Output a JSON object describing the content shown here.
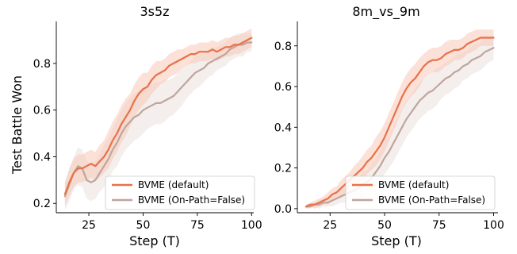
{
  "figure": {
    "ylabel": "Test Battle Won",
    "colors": {
      "default": "#e8714a",
      "onpath_false": "#bfa59d",
      "default_band": "#f7c8b6",
      "onpath_band": "#ebe2de"
    }
  },
  "chart_data": [
    {
      "type": "line",
      "title": "3s5z",
      "xlabel": "Step (T)",
      "ylabel": "Test Battle Won",
      "xlim": [
        10,
        101
      ],
      "ylim": [
        0.16,
        0.98
      ],
      "xticks": [
        25,
        50,
        75,
        100
      ],
      "yticks": [
        0.2,
        0.4,
        0.6,
        0.8
      ],
      "ytick_labels": [
        "0.2",
        "0.4",
        "0.6",
        "0.8"
      ],
      "grid": false,
      "legend_position": "lower-right",
      "series": [
        {
          "name": "BVME (default)",
          "color": "#e8714a",
          "x": [
            14,
            16,
            18,
            20,
            22,
            24,
            26,
            28,
            30,
            32,
            34,
            36,
            38,
            40,
            42,
            44,
            46,
            48,
            50,
            52,
            54,
            56,
            58,
            60,
            62,
            64,
            66,
            68,
            70,
            72,
            74,
            76,
            78,
            80,
            82,
            84,
            86,
            88,
            90,
            92,
            94,
            96,
            98,
            100
          ],
          "y": [
            0.24,
            0.29,
            0.33,
            0.35,
            0.35,
            0.36,
            0.37,
            0.36,
            0.38,
            0.4,
            0.43,
            0.47,
            0.5,
            0.54,
            0.57,
            0.6,
            0.64,
            0.67,
            0.69,
            0.7,
            0.73,
            0.75,
            0.76,
            0.77,
            0.79,
            0.8,
            0.81,
            0.82,
            0.83,
            0.84,
            0.84,
            0.85,
            0.85,
            0.85,
            0.86,
            0.85,
            0.86,
            0.87,
            0.87,
            0.88,
            0.88,
            0.89,
            0.9,
            0.91
          ],
          "band": [
            0.05,
            0.06,
            0.06,
            0.06,
            0.06,
            0.06,
            0.06,
            0.06,
            0.07,
            0.07,
            0.08,
            0.08,
            0.08,
            0.08,
            0.08,
            0.07,
            0.07,
            0.07,
            0.07,
            0.06,
            0.06,
            0.06,
            0.05,
            0.05,
            0.05,
            0.05,
            0.05,
            0.04,
            0.04,
            0.04,
            0.04,
            0.04,
            0.04,
            0.04,
            0.04,
            0.04,
            0.04,
            0.04,
            0.04,
            0.04,
            0.04,
            0.04,
            0.04,
            0.04
          ]
        },
        {
          "name": "BVME (On-Path=False)",
          "color": "#bfa59d",
          "x": [
            14,
            16,
            18,
            20,
            22,
            24,
            26,
            28,
            30,
            32,
            34,
            36,
            38,
            40,
            42,
            44,
            46,
            48,
            50,
            52,
            54,
            56,
            58,
            60,
            62,
            64,
            66,
            68,
            70,
            72,
            74,
            76,
            78,
            80,
            82,
            84,
            86,
            88,
            90,
            92,
            94,
            96,
            98,
            100
          ],
          "y": [
            0.23,
            0.28,
            0.33,
            0.36,
            0.35,
            0.3,
            0.29,
            0.3,
            0.33,
            0.36,
            0.39,
            0.43,
            0.46,
            0.5,
            0.53,
            0.55,
            0.57,
            0.58,
            0.6,
            0.61,
            0.62,
            0.63,
            0.63,
            0.64,
            0.65,
            0.66,
            0.68,
            0.7,
            0.72,
            0.74,
            0.76,
            0.77,
            0.78,
            0.8,
            0.81,
            0.82,
            0.83,
            0.84,
            0.86,
            0.87,
            0.88,
            0.88,
            0.89,
            0.89
          ],
          "band": [
            0.06,
            0.07,
            0.07,
            0.08,
            0.08,
            0.08,
            0.08,
            0.08,
            0.08,
            0.09,
            0.09,
            0.09,
            0.1,
            0.1,
            0.1,
            0.1,
            0.1,
            0.1,
            0.1,
            0.09,
            0.09,
            0.09,
            0.09,
            0.09,
            0.08,
            0.08,
            0.08,
            0.08,
            0.07,
            0.07,
            0.07,
            0.07,
            0.06,
            0.06,
            0.06,
            0.05,
            0.05,
            0.05,
            0.05,
            0.05,
            0.05,
            0.05,
            0.04,
            0.04
          ]
        }
      ]
    },
    {
      "type": "line",
      "title": "8m_vs_9m",
      "xlabel": "Step (T)",
      "ylabel": "",
      "xlim": [
        10,
        102
      ],
      "ylim": [
        -0.02,
        0.92
      ],
      "xticks": [
        25,
        50,
        75,
        100
      ],
      "yticks": [
        0.0,
        0.2,
        0.4,
        0.6,
        0.8
      ],
      "ytick_labels": [
        "0.0",
        "0.2",
        "0.4",
        "0.6",
        "0.8"
      ],
      "grid": false,
      "legend_position": "lower-right",
      "series": [
        {
          "name": "BVME (default)",
          "color": "#e8714a",
          "x": [
            14,
            16,
            18,
            20,
            22,
            24,
            26,
            28,
            30,
            32,
            34,
            36,
            38,
            40,
            42,
            44,
            46,
            48,
            50,
            52,
            54,
            56,
            58,
            60,
            62,
            64,
            66,
            68,
            70,
            72,
            74,
            76,
            78,
            80,
            82,
            84,
            86,
            88,
            90,
            92,
            94,
            96,
            98,
            100
          ],
          "y": [
            0.01,
            0.02,
            0.02,
            0.03,
            0.04,
            0.05,
            0.07,
            0.08,
            0.1,
            0.12,
            0.14,
            0.16,
            0.18,
            0.2,
            0.23,
            0.25,
            0.28,
            0.31,
            0.35,
            0.4,
            0.45,
            0.5,
            0.55,
            0.59,
            0.62,
            0.64,
            0.67,
            0.7,
            0.72,
            0.73,
            0.73,
            0.74,
            0.76,
            0.77,
            0.78,
            0.78,
            0.79,
            0.81,
            0.82,
            0.83,
            0.84,
            0.84,
            0.84,
            0.84
          ],
          "band": [
            0.01,
            0.01,
            0.02,
            0.02,
            0.02,
            0.03,
            0.03,
            0.03,
            0.04,
            0.04,
            0.04,
            0.05,
            0.05,
            0.06,
            0.06,
            0.06,
            0.07,
            0.07,
            0.07,
            0.07,
            0.07,
            0.07,
            0.07,
            0.07,
            0.07,
            0.07,
            0.07,
            0.06,
            0.06,
            0.06,
            0.06,
            0.06,
            0.06,
            0.06,
            0.05,
            0.05,
            0.05,
            0.05,
            0.05,
            0.05,
            0.04,
            0.04,
            0.04,
            0.04
          ]
        },
        {
          "name": "BVME (On-Path=False)",
          "color": "#bfa59d",
          "x": [
            14,
            16,
            18,
            20,
            22,
            24,
            26,
            28,
            30,
            32,
            34,
            36,
            38,
            40,
            42,
            44,
            46,
            48,
            50,
            52,
            54,
            56,
            58,
            60,
            62,
            64,
            66,
            68,
            70,
            72,
            74,
            76,
            78,
            80,
            82,
            84,
            86,
            88,
            90,
            92,
            94,
            96,
            98,
            100
          ],
          "y": [
            0.01,
            0.01,
            0.02,
            0.02,
            0.03,
            0.03,
            0.04,
            0.05,
            0.06,
            0.07,
            0.08,
            0.09,
            0.1,
            0.12,
            0.13,
            0.15,
            0.18,
            0.21,
            0.25,
            0.28,
            0.32,
            0.36,
            0.4,
            0.44,
            0.47,
            0.5,
            0.53,
            0.55,
            0.57,
            0.58,
            0.6,
            0.62,
            0.64,
            0.65,
            0.67,
            0.68,
            0.7,
            0.71,
            0.73,
            0.74,
            0.75,
            0.77,
            0.78,
            0.79
          ],
          "band": [
            0.01,
            0.01,
            0.01,
            0.02,
            0.02,
            0.02,
            0.03,
            0.03,
            0.03,
            0.04,
            0.04,
            0.05,
            0.05,
            0.06,
            0.06,
            0.07,
            0.07,
            0.08,
            0.08,
            0.08,
            0.09,
            0.09,
            0.09,
            0.09,
            0.09,
            0.09,
            0.09,
            0.09,
            0.09,
            0.09,
            0.09,
            0.08,
            0.08,
            0.08,
            0.08,
            0.08,
            0.07,
            0.07,
            0.07,
            0.07,
            0.07,
            0.07,
            0.06,
            0.06
          ]
        }
      ]
    }
  ]
}
